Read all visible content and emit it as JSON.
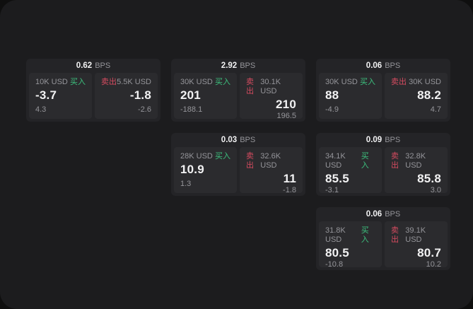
{
  "page": {
    "outer_bg": "#0f0f0f",
    "surface_bg": "#1c1c1e"
  },
  "colors": {
    "card_bg": "#242427",
    "panel_bg": "#2b2b2e",
    "text_primary": "#f2f2f3",
    "text_secondary": "#95959a",
    "buy_green": "#3cc17e",
    "sell_red": "#d64b60"
  },
  "labels": {
    "bps_unit": "BPS",
    "buy": "买入",
    "sell": "卖出"
  },
  "cards": [
    {
      "bps": "0.62",
      "grid": {
        "row": 1,
        "col": 1
      },
      "buy": {
        "amount": "10K USD",
        "price": "-3.7",
        "delta": "4.3"
      },
      "sell": {
        "amount": "5.5K USD",
        "price": "-1.8",
        "delta": "-2.6"
      }
    },
    {
      "bps": "2.92",
      "grid": {
        "row": 1,
        "col": 2
      },
      "buy": {
        "amount": "30K USD",
        "price": "201",
        "delta": "-188.1"
      },
      "sell": {
        "amount": "30.1K USD",
        "price": "210",
        "delta": "196.5"
      }
    },
    {
      "bps": "0.06",
      "grid": {
        "row": 1,
        "col": 3
      },
      "buy": {
        "amount": "30K USD",
        "price": "88",
        "delta": "-4.9"
      },
      "sell": {
        "amount": "30K USD",
        "price": "88.2",
        "delta": "4.7"
      }
    },
    {
      "bps": "0.03",
      "grid": {
        "row": 2,
        "col": 2
      },
      "buy": {
        "amount": "28K USD",
        "price": "10.9",
        "delta": "1.3"
      },
      "sell": {
        "amount": "32.6K USD",
        "price": "11",
        "delta": "-1.8"
      }
    },
    {
      "bps": "0.09",
      "grid": {
        "row": 2,
        "col": 3
      },
      "buy": {
        "amount": "34.1K USD",
        "price": "85.5",
        "delta": "-3.1"
      },
      "sell": {
        "amount": "32.8K USD",
        "price": "85.8",
        "delta": "3.0"
      }
    },
    {
      "bps": "0.06",
      "grid": {
        "row": 3,
        "col": 3
      },
      "buy": {
        "amount": "31.8K USD",
        "price": "80.5",
        "delta": "-10.8"
      },
      "sell": {
        "amount": "39.1K USD",
        "price": "80.7",
        "delta": "10.2"
      }
    }
  ]
}
